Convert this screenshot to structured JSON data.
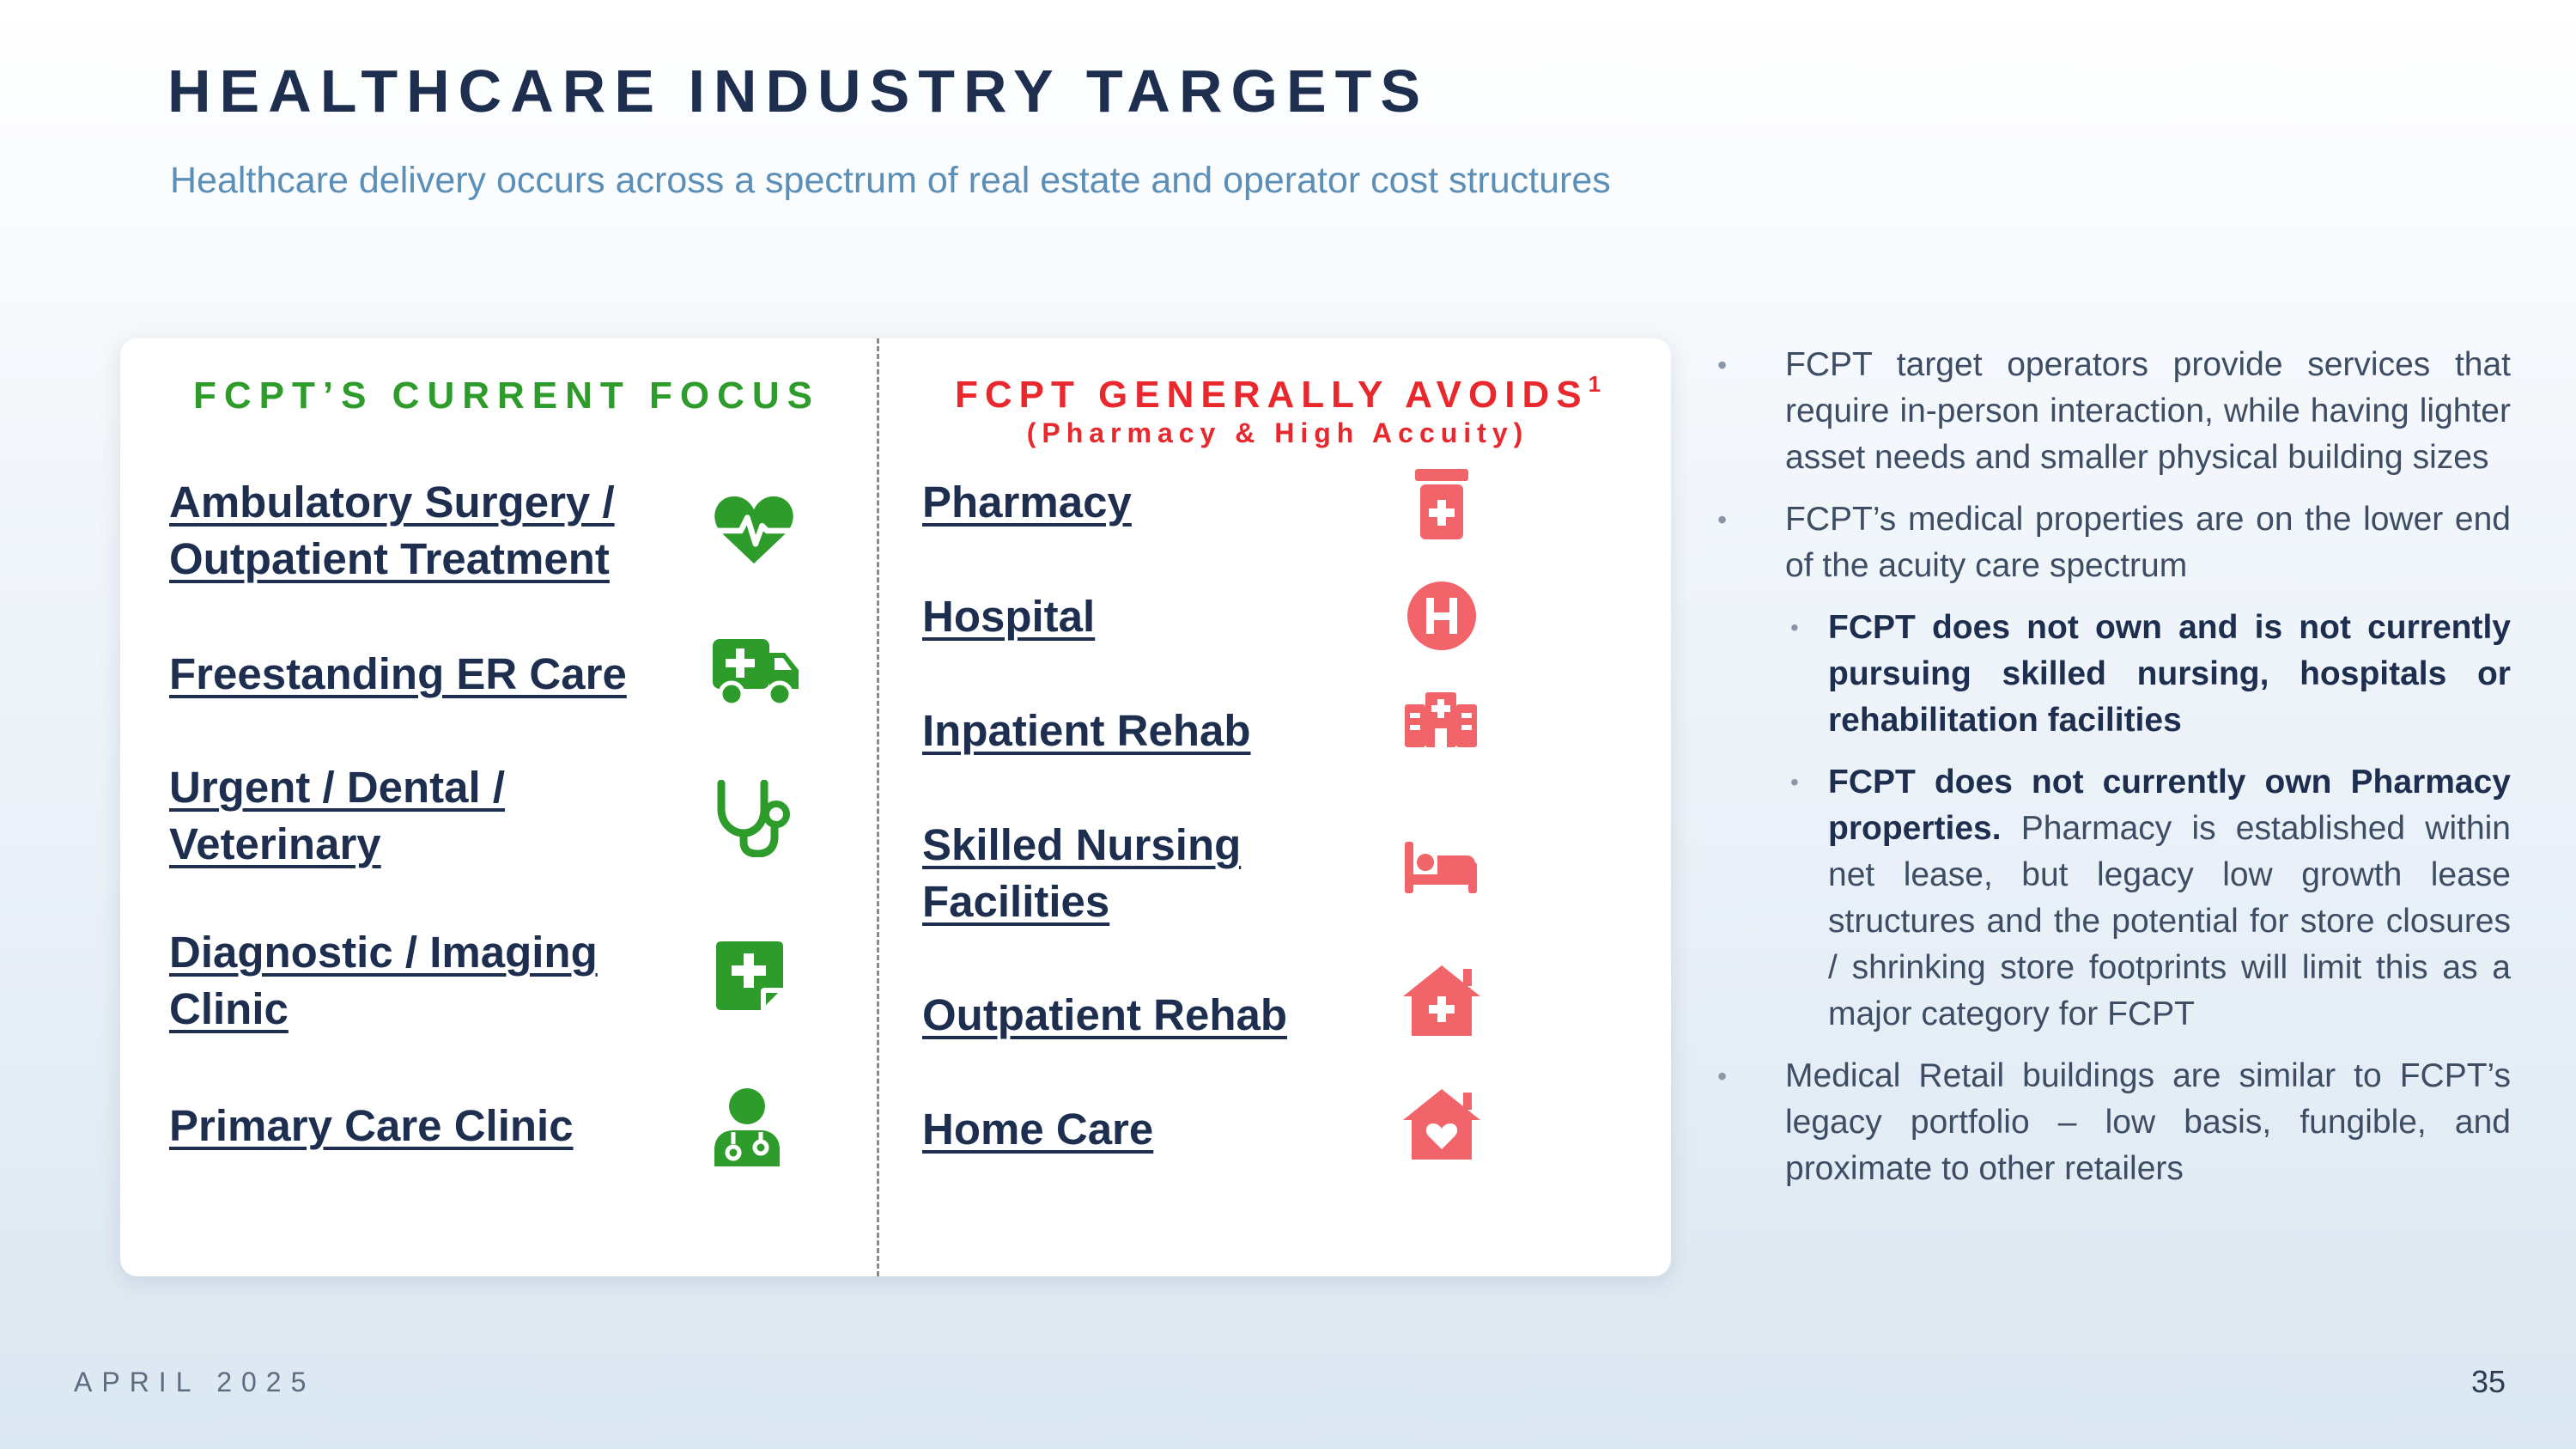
{
  "header": {
    "title": "HEALTHCARE INDUSTRY TARGETS",
    "subtitle": "Healthcare delivery occurs across a spectrum of real estate and operator cost structures"
  },
  "left_column": {
    "heading": "FCPT’S CURRENT FOCUS",
    "accent_color": "#2e9c2a",
    "items": [
      {
        "line1": "Ambulatory Surgery /",
        "line2": "Outpatient Treatment",
        "icon": "heartbeat-icon"
      },
      {
        "line1": "Freestanding ER Care",
        "line2": "",
        "icon": "ambulance-icon"
      },
      {
        "line1": "Urgent / Dental /",
        "line2": "Veterinary",
        "icon": "stethoscope-icon"
      },
      {
        "line1": "Diagnostic / Imaging",
        "line2": "Clinic",
        "icon": "medical-file-icon"
      },
      {
        "line1": "Primary Care Clinic",
        "line2": "",
        "icon": "doctor-icon"
      }
    ]
  },
  "right_column": {
    "heading": "FCPT GENERALLY AVOIDS",
    "footnote_marker": "1",
    "subheading": "(Pharmacy & High Accuity)",
    "accent_color": "#e8282c",
    "icon_color": "#f0646a",
    "items": [
      {
        "line1": "Pharmacy",
        "line2": "",
        "icon": "pill-bottle-icon"
      },
      {
        "line1": "Hospital",
        "line2": "",
        "icon": "hospital-h-icon"
      },
      {
        "line1": "Inpatient Rehab",
        "line2": "",
        "icon": "hospital-building-icon"
      },
      {
        "line1": "Skilled Nursing",
        "line2": "Facilities",
        "icon": "bed-icon"
      },
      {
        "line1": "Outpatient Rehab",
        "line2": "",
        "icon": "house-medical-icon"
      },
      {
        "line1": "Home Care",
        "line2": "",
        "icon": "house-heart-icon"
      }
    ]
  },
  "bullets": {
    "b1": "FCPT target operators provide services that require in-person interaction, while having lighter asset needs and smaller physical building sizes",
    "b2": "FCPT’s medical properties are on the lower end of the acuity care spectrum",
    "b2a": "FCPT does not own and is not currently pursuing skilled nursing, hospitals or rehabilitation facilities",
    "b2b_bold": "FCPT does not currently own Pharmacy properties.",
    "b2b_rest": " Pharmacy is established within net lease, but legacy low growth lease structures and the potential for store closures / shrinking store footprints will limit this as a major category for FCPT",
    "b3": "Medical Retail buildings are similar to FCPT’s legacy portfolio – low basis, fungible, and proximate to other retailers"
  },
  "footer": {
    "date": "APRIL 2025",
    "page_number": "35"
  }
}
